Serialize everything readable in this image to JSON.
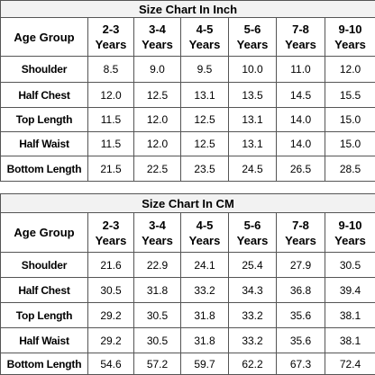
{
  "tables": [
    {
      "title": "Size Chart In Inch",
      "header": {
        "label": "Age Group",
        "columns": [
          [
            "2-3",
            "Years"
          ],
          [
            "3-4",
            "Years"
          ],
          [
            "4-5",
            "Years"
          ],
          [
            "5-6",
            "Years"
          ],
          [
            "7-8",
            "Years"
          ],
          [
            "9-10",
            "Years"
          ]
        ]
      },
      "rows": [
        {
          "label": "Shoulder",
          "values": [
            "8.5",
            "9.0",
            "9.5",
            "10.0",
            "11.0",
            "12.0"
          ]
        },
        {
          "label": "Half Chest",
          "values": [
            "12.0",
            "12.5",
            "13.1",
            "13.5",
            "14.5",
            "15.5"
          ]
        },
        {
          "label": "Top Length",
          "values": [
            "11.5",
            "12.0",
            "12.5",
            "13.1",
            "14.0",
            "15.0"
          ]
        },
        {
          "label": "Half Waist",
          "values": [
            "11.5",
            "12.0",
            "12.5",
            "13.1",
            "14.0",
            "15.0"
          ]
        },
        {
          "label": "Bottom Length",
          "values": [
            "21.5",
            "22.5",
            "23.5",
            "24.5",
            "26.5",
            "28.5"
          ]
        }
      ]
    },
    {
      "title": "Size Chart In CM",
      "header": {
        "label": "Age Group",
        "columns": [
          [
            "2-3",
            "Years"
          ],
          [
            "3-4",
            "Years"
          ],
          [
            "4-5",
            "Years"
          ],
          [
            "5-6",
            "Years"
          ],
          [
            "7-8",
            "Years"
          ],
          [
            "9-10",
            "Years"
          ]
        ]
      },
      "rows": [
        {
          "label": "Shoulder",
          "values": [
            "21.6",
            "22.9",
            "24.1",
            "25.4",
            "27.9",
            "30.5"
          ]
        },
        {
          "label": "Half Chest",
          "values": [
            "30.5",
            "31.8",
            "33.2",
            "34.3",
            "36.8",
            "39.4"
          ]
        },
        {
          "label": "Top Length",
          "values": [
            "29.2",
            "30.5",
            "31.8",
            "33.2",
            "35.6",
            "38.1"
          ]
        },
        {
          "label": "Half Waist",
          "values": [
            "29.2",
            "30.5",
            "31.8",
            "33.2",
            "35.6",
            "38.1"
          ]
        },
        {
          "label": "Bottom Length",
          "values": [
            "54.6",
            "57.2",
            "59.7",
            "62.2",
            "67.3",
            "72.4"
          ]
        }
      ]
    }
  ]
}
